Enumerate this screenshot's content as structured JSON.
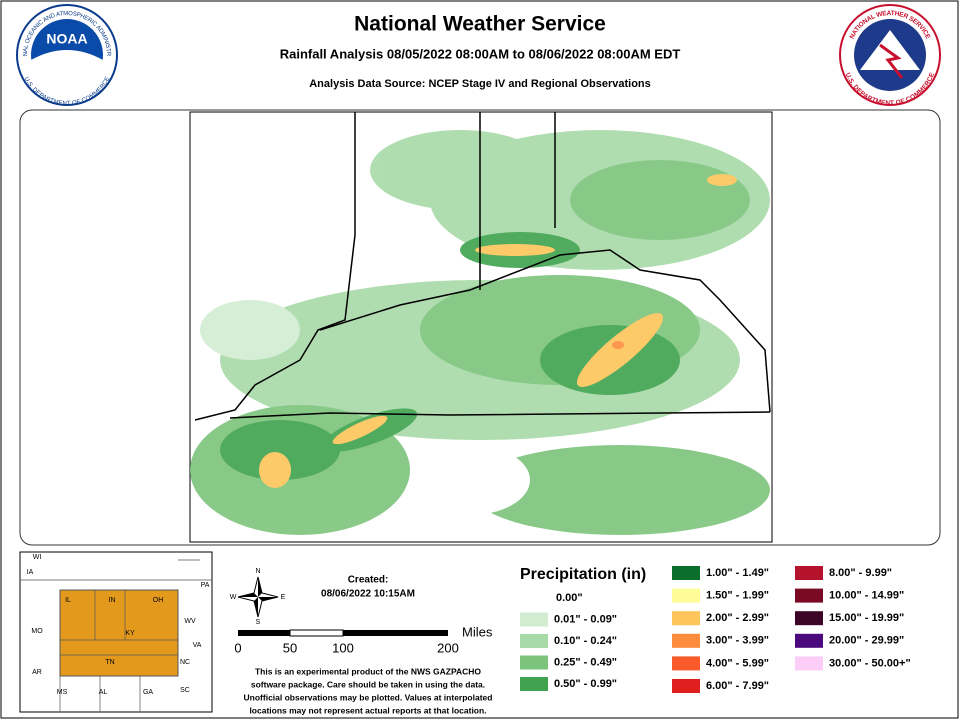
{
  "header": {
    "title": "National Weather Service",
    "subtitle": "Rainfall Analysis 08/05/2022 08:00AM to 08/06/2022 08:00AM EDT",
    "source": "Analysis Data Source: NCEP Stage IV and Regional Observations"
  },
  "logos": {
    "noaa": {
      "name": "NOAA",
      "rim_top": "NATIONAL OCEANIC AND ATMOSPHERIC ADMINISTRATION",
      "rim_bottom": "U.S. DEPARTMENT OF COMMERCE"
    },
    "nws": {
      "rim_top": "NATIONAL WEATHER SERVICE",
      "rim_bottom": "U.S. DEPARTMENT OF COMMERCE"
    }
  },
  "inset": {
    "states": [
      "WI",
      "IA",
      "IL",
      "IN",
      "OH",
      "PA",
      "MO",
      "KY",
      "WV",
      "VA",
      "AR",
      "TN",
      "NC",
      "MS",
      "AL",
      "GA",
      "SC"
    ]
  },
  "compass": {
    "n": "N",
    "e": "E",
    "s": "S",
    "w": "W"
  },
  "created": {
    "label": "Created:",
    "date": "08/06/2022 10:15AM"
  },
  "scale": {
    "ticks": [
      "0",
      "50",
      "100",
      "200"
    ],
    "unit": "Miles"
  },
  "disclaimer": [
    "This is an experimental product of the NWS GAZPACHO",
    "software package. Care should be taken in using the data.",
    "Unofficial observations may be plotted. Values at interpolated",
    "locations may not represent actual reports at that location."
  ],
  "legend": {
    "title": "Precipitation (in)",
    "items": [
      {
        "label": "0.00\"",
        "color": "#ffffff"
      },
      {
        "label": "0.01\" - 0.09\"",
        "color": "#d2ecd2"
      },
      {
        "label": "0.10\" - 0.24\"",
        "color": "#a8daa8"
      },
      {
        "label": "0.25\" - 0.49\"",
        "color": "#7cc47c"
      },
      {
        "label": "0.50\" - 0.99\"",
        "color": "#3ea24e"
      },
      {
        "label": "1.00\" - 1.49\"",
        "color": "#0b6e2a"
      },
      {
        "label": "1.50\" - 1.99\"",
        "color": "#fefc96"
      },
      {
        "label": "2.00\" - 2.99\"",
        "color": "#fdc55a"
      },
      {
        "label": "3.00\" - 3.99\"",
        "color": "#fd8c3c"
      },
      {
        "label": "4.00\" - 5.99\"",
        "color": "#fb5a2a"
      },
      {
        "label": "6.00\" - 7.99\"",
        "color": "#e0201e"
      },
      {
        "label": "8.00\" - 9.99\"",
        "color": "#b5122e"
      },
      {
        "label": "10.00\" - 14.99\"",
        "color": "#7a0a24"
      },
      {
        "label": "15.00\" - 19.99\"",
        "color": "#3e0626"
      },
      {
        "label": "20.00\" - 29.99\"",
        "color": "#4a0a7e"
      },
      {
        "label": "30.00\" - 50.00+\"",
        "color": "#fccdf7"
      }
    ]
  }
}
